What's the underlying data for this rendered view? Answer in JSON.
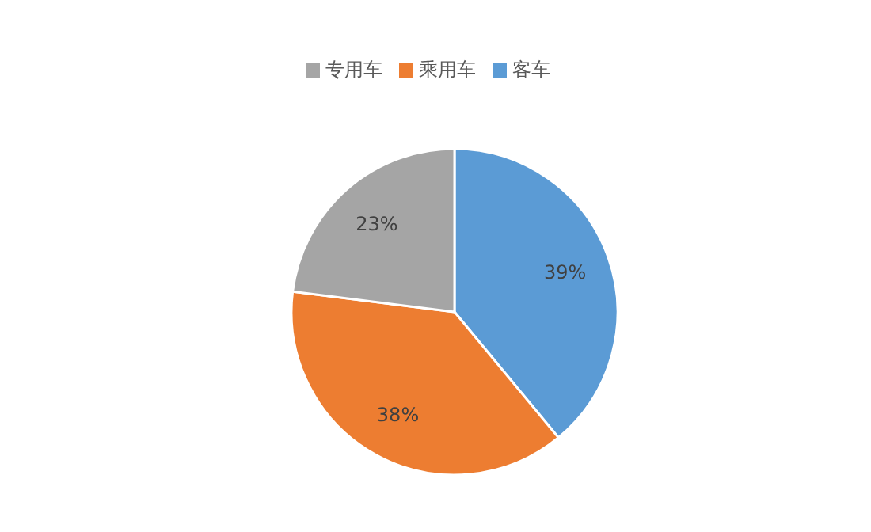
{
  "chart_data": {
    "type": "pie",
    "categories": [
      "客车",
      "乘用车",
      "专用车"
    ],
    "values": [
      39,
      38,
      23
    ],
    "colors": [
      "#5b9bd5",
      "#ed7d31",
      "#a5a5a5"
    ],
    "value_labels": [
      "39%",
      "38%",
      "23%"
    ],
    "legend": "top"
  }
}
